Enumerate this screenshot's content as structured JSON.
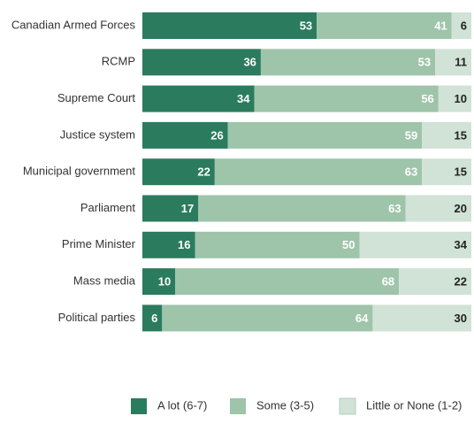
{
  "chart_data": {
    "type": "stacked-bar-horizontal",
    "categories": [
      "Canadian Armed Forces",
      "RCMP",
      "Supreme Court",
      "Justice system",
      "Municipal government",
      "Parliament",
      "Prime Minister",
      "Mass media",
      "Political parties"
    ],
    "series": [
      {
        "name": "A lot (6-7)",
        "color": "#2b7b5f",
        "values": [
          53,
          36,
          34,
          26,
          22,
          17,
          16,
          10,
          6
        ]
      },
      {
        "name": "Some (3-5)",
        "color": "#9ec4aa",
        "values": [
          41,
          53,
          56,
          59,
          63,
          63,
          50,
          68,
          64
        ]
      },
      {
        "name": "Little or None (1-2)",
        "color": "#d1e2d6",
        "values": [
          6,
          11,
          10,
          15,
          15,
          20,
          34,
          22,
          30
        ]
      }
    ],
    "xlim": [
      0,
      100
    ]
  }
}
